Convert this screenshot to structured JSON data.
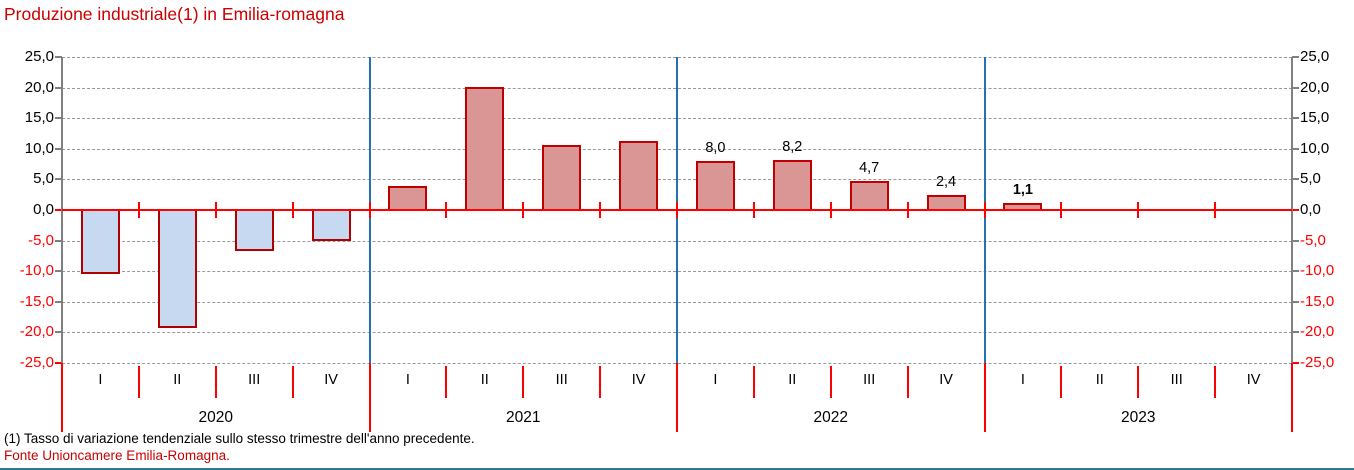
{
  "title": "Produzione industriale(1) in Emilia-romagna",
  "footnote": "(1) Tasso di variazione tendenziale sullo stesso trimestre dell'anno precedente.",
  "source": "Fonte Unioncamere Emilia-Romagna.",
  "colors": {
    "title": "#CC0000",
    "source": "#CC0000",
    "axis_line": "#808080",
    "gridline": "#999999",
    "red_line": "#FF0000",
    "tick_label_positive": "#000000",
    "tick_label_negative": "#FF0000",
    "negative_bar_fill": "#C6D9F1",
    "negative_bar_border": "#B00000",
    "positive_bar_fill": "#D99694",
    "positive_bar_border": "#C00000",
    "year_separator": "#2272B4",
    "bottom_border": "#2E7795"
  },
  "chart_data": {
    "type": "bar",
    "title": "Produzione industriale(1) in Emilia-romagna",
    "xlabel": "",
    "ylabel": "",
    "ylim": [
      -25,
      25
    ],
    "grid": "horizontal-dashed",
    "legend": "none",
    "yticks": [
      {
        "value": 25,
        "label": "25,0"
      },
      {
        "value": 20,
        "label": "20,0"
      },
      {
        "value": 15,
        "label": "15,0"
      },
      {
        "value": 10,
        "label": "10,0"
      },
      {
        "value": 5,
        "label": "5,0"
      },
      {
        "value": 0,
        "label": "0,0"
      },
      {
        "value": -5,
        "label": "-5,0"
      },
      {
        "value": -10,
        "label": "-10,0"
      },
      {
        "value": -15,
        "label": "-15,0"
      },
      {
        "value": -20,
        "label": "-20,0"
      },
      {
        "value": -25,
        "label": "-25,0"
      }
    ],
    "groups": [
      {
        "year": "2020",
        "quarters": [
          "I",
          "II",
          "III",
          "IV"
        ],
        "values": [
          -10.5,
          -19.3,
          -6.7,
          -5.0
        ],
        "bar_labels": [
          "",
          "",
          "",
          ""
        ],
        "bar_labels_bold": false
      },
      {
        "year": "2021",
        "quarters": [
          "I",
          "II",
          "III",
          "IV"
        ],
        "values": [
          3.9,
          20.1,
          10.7,
          11.3
        ],
        "bar_labels": [
          "",
          "",
          "",
          ""
        ],
        "bar_labels_bold": false
      },
      {
        "year": "2022",
        "quarters": [
          "I",
          "II",
          "III",
          "IV"
        ],
        "values": [
          8.0,
          8.2,
          4.7,
          2.4
        ],
        "bar_labels": [
          "8,0",
          "8,2",
          "4,7",
          "2,4"
        ],
        "bar_labels_bold": false
      },
      {
        "year": "2023",
        "quarters": [
          "I",
          "II",
          "III",
          "IV"
        ],
        "values": [
          1.1,
          null,
          null,
          null
        ],
        "bar_labels": [
          "1,1",
          "",
          "",
          ""
        ],
        "bar_labels_bold": true
      }
    ]
  }
}
